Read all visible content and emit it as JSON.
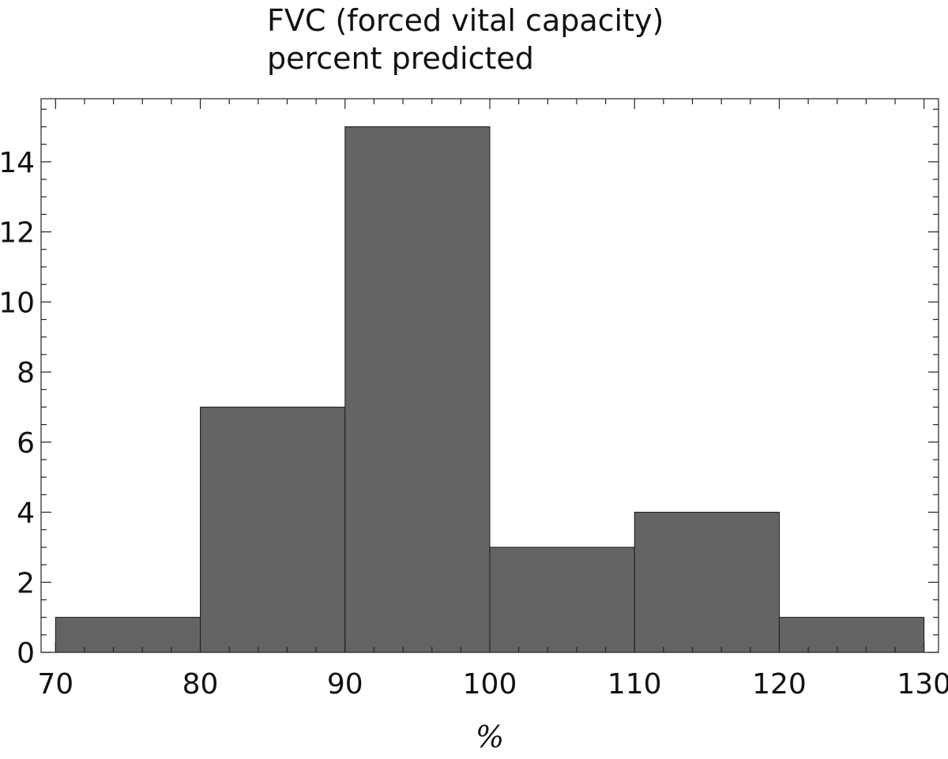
{
  "chart_data": {
    "type": "bar",
    "subtype": "histogram",
    "title_lines": [
      "FVC (forced vital capacity)",
      "percent predicted"
    ],
    "xlabel": "%",
    "ylabel": "",
    "bins": [
      {
        "start": 70,
        "end": 80,
        "count": 1
      },
      {
        "start": 80,
        "end": 90,
        "count": 7
      },
      {
        "start": 90,
        "end": 100,
        "count": 15
      },
      {
        "start": 100,
        "end": 110,
        "count": 3
      },
      {
        "start": 110,
        "end": 120,
        "count": 4
      },
      {
        "start": 120,
        "end": 130,
        "count": 1
      }
    ],
    "xlim": [
      69,
      131
    ],
    "ylim": [
      0,
      15.8
    ],
    "x_ticks": [
      "70",
      "80",
      "90",
      "100",
      "110",
      "120",
      "130"
    ],
    "y_ticks": [
      "0",
      "2",
      "4",
      "6",
      "8",
      "10",
      "12",
      "14"
    ],
    "grid": false,
    "legend": "none",
    "bar_color": "#646464",
    "edge_color": "#1a1a1a"
  }
}
